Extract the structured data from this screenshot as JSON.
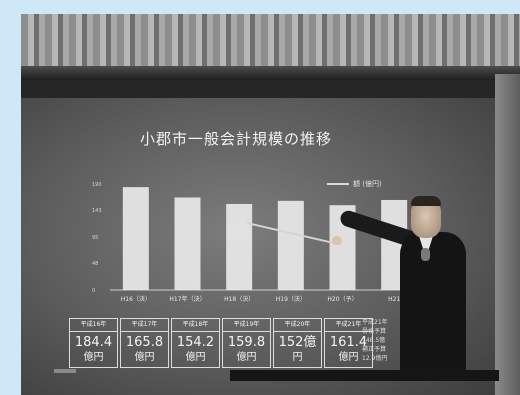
{
  "slide": {
    "title": "小郡市一般会計規模の推移",
    "legend": "額 (億円)",
    "note_lines": [
      "平成21年",
      "骨格予算",
      "148.5億",
      "補正予算",
      "12.9億円"
    ]
  },
  "chart_data": {
    "type": "bar",
    "title": "小郡市一般会計規模の推移",
    "categories": [
      "H16（決）",
      "H17年（決）",
      "H18（決）",
      "H19（決）",
      "H20（予）",
      "H21"
    ],
    "values": [
      184.4,
      165.8,
      154.2,
      159.8,
      152,
      161.4
    ],
    "yticks": [
      0,
      48,
      95,
      143,
      190
    ],
    "ylim": [
      0,
      190
    ],
    "legend": "額 (億円)",
    "grid": false
  },
  "table": {
    "columns": [
      {
        "header": "平成16年",
        "value": "184.4",
        "unit": "億円"
      },
      {
        "header": "平成17年",
        "value": "165.8",
        "unit": "億円"
      },
      {
        "header": "平成18年",
        "value": "154.2",
        "unit": "億円"
      },
      {
        "header": "平成19年",
        "value": "159.8",
        "unit": "億円"
      },
      {
        "header": "平成20年",
        "value": "152億",
        "unit": "円"
      },
      {
        "header": "平成21年",
        "value": "161.4",
        "unit": "億円"
      }
    ]
  }
}
